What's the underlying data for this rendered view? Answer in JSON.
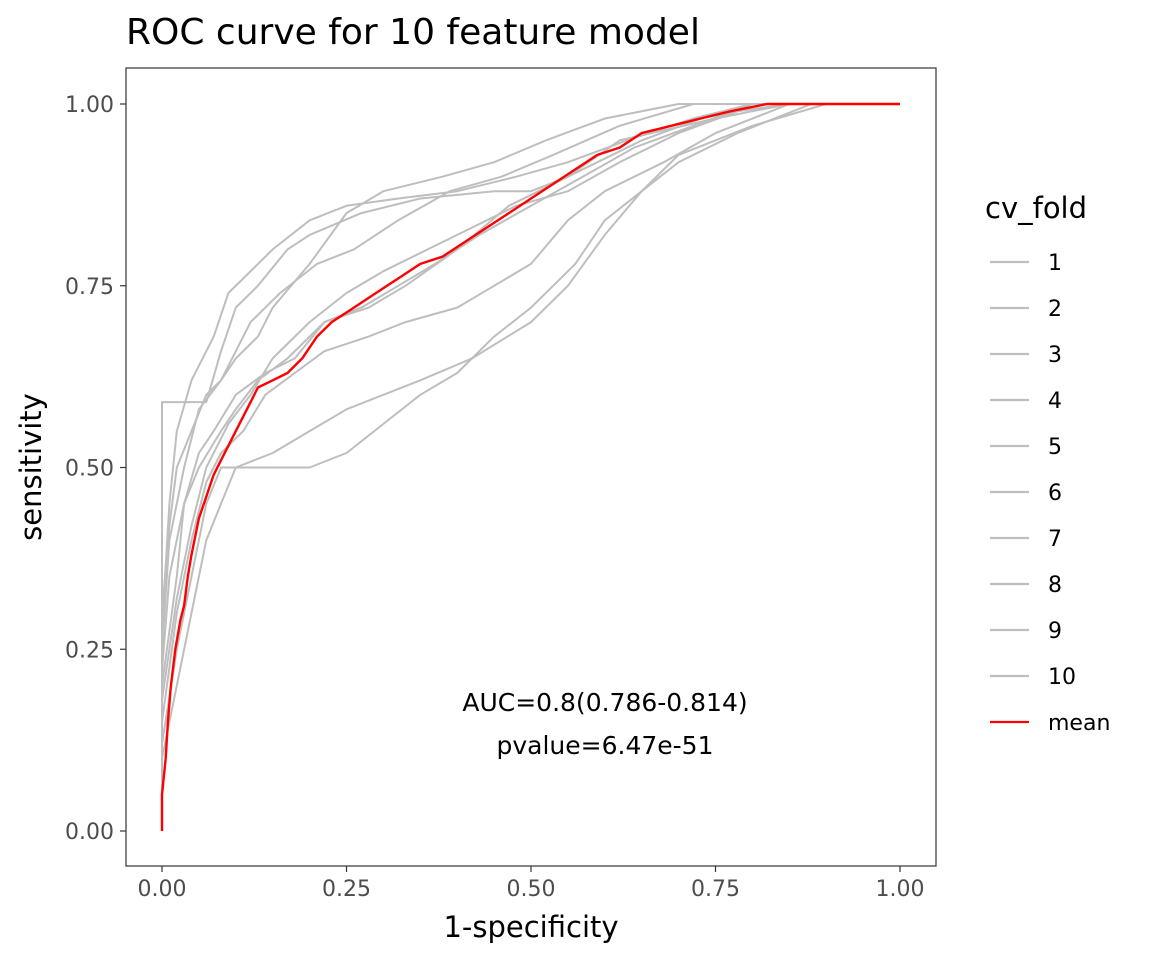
{
  "chart_data": {
    "type": "line",
    "title": "ROC curve for 10 feature model",
    "xlabel": "1-specificity",
    "ylabel": "sensitivity",
    "xlim": [
      -0.05,
      1.05
    ],
    "ylim": [
      -0.05,
      1.05
    ],
    "x_ticks": [
      "0.00",
      "0.25",
      "0.50",
      "0.75",
      "1.00"
    ],
    "y_ticks": [
      "0.00",
      "0.25",
      "0.50",
      "0.75",
      "1.00"
    ],
    "grid": false,
    "legend": {
      "title": "cv_fold",
      "placement": "right",
      "entries": [
        {
          "label": "1",
          "color": "#bebebe"
        },
        {
          "label": "2",
          "color": "#bebebe"
        },
        {
          "label": "3",
          "color": "#bebebe"
        },
        {
          "label": "4",
          "color": "#bebebe"
        },
        {
          "label": "5",
          "color": "#bebebe"
        },
        {
          "label": "6",
          "color": "#bebebe"
        },
        {
          "label": "7",
          "color": "#bebebe"
        },
        {
          "label": "8",
          "color": "#bebebe"
        },
        {
          "label": "9",
          "color": "#bebebe"
        },
        {
          "label": "10",
          "color": "#bebebe"
        },
        {
          "label": "mean",
          "color": "#ff0000"
        }
      ]
    },
    "annotations": [
      "AUC=0.8(0.786-0.814)",
      "pvalue=6.47e-51"
    ],
    "series": [
      {
        "name": "1",
        "color": "#bebebe",
        "points": [
          [
            0,
            0
          ],
          [
            0,
            0.3
          ],
          [
            0.01,
            0.42
          ],
          [
            0.02,
            0.5
          ],
          [
            0.04,
            0.55
          ],
          [
            0.06,
            0.6
          ],
          [
            0.08,
            0.62
          ],
          [
            0.1,
            0.65
          ],
          [
            0.13,
            0.68
          ],
          [
            0.15,
            0.72
          ],
          [
            0.2,
            0.78
          ],
          [
            0.25,
            0.85
          ],
          [
            0.3,
            0.88
          ],
          [
            0.38,
            0.9
          ],
          [
            0.45,
            0.92
          ],
          [
            0.52,
            0.95
          ],
          [
            0.6,
            0.98
          ],
          [
            0.7,
            1.0
          ],
          [
            1.0,
            1.0
          ]
        ]
      },
      {
        "name": "2",
        "color": "#bebebe",
        "points": [
          [
            0,
            0
          ],
          [
            0,
            0.2
          ],
          [
            0.02,
            0.35
          ],
          [
            0.03,
            0.45
          ],
          [
            0.05,
            0.52
          ],
          [
            0.07,
            0.55
          ],
          [
            0.1,
            0.6
          ],
          [
            0.14,
            0.63
          ],
          [
            0.18,
            0.65
          ],
          [
            0.22,
            0.7
          ],
          [
            0.28,
            0.72
          ],
          [
            0.33,
            0.75
          ],
          [
            0.4,
            0.8
          ],
          [
            0.47,
            0.86
          ],
          [
            0.55,
            0.9
          ],
          [
            0.62,
            0.95
          ],
          [
            0.75,
            0.98
          ],
          [
            0.85,
            1.0
          ],
          [
            1.0,
            1.0
          ]
        ]
      },
      {
        "name": "3",
        "color": "#bebebe",
        "points": [
          [
            0,
            0
          ],
          [
            0,
            0.25
          ],
          [
            0.01,
            0.4
          ],
          [
            0.03,
            0.5
          ],
          [
            0.05,
            0.58
          ],
          [
            0.08,
            0.62
          ],
          [
            0.1,
            0.66
          ],
          [
            0.12,
            0.7
          ],
          [
            0.16,
            0.74
          ],
          [
            0.21,
            0.78
          ],
          [
            0.26,
            0.8
          ],
          [
            0.32,
            0.84
          ],
          [
            0.39,
            0.88
          ],
          [
            0.46,
            0.9
          ],
          [
            0.53,
            0.93
          ],
          [
            0.62,
            0.97
          ],
          [
            0.72,
            1.0
          ],
          [
            1.0,
            1.0
          ]
        ]
      },
      {
        "name": "4",
        "color": "#bebebe",
        "points": [
          [
            0,
            0
          ],
          [
            0,
            0.59
          ],
          [
            0.06,
            0.59
          ],
          [
            0.08,
            0.66
          ],
          [
            0.1,
            0.72
          ],
          [
            0.13,
            0.75
          ],
          [
            0.17,
            0.8
          ],
          [
            0.2,
            0.82
          ],
          [
            0.27,
            0.85
          ],
          [
            0.35,
            0.87
          ],
          [
            0.45,
            0.88
          ],
          [
            0.5,
            0.88
          ],
          [
            0.55,
            0.9
          ],
          [
            0.65,
            0.95
          ],
          [
            0.73,
            0.98
          ],
          [
            0.82,
            1.0
          ],
          [
            1.0,
            1.0
          ]
        ]
      },
      {
        "name": "5",
        "color": "#bebebe",
        "points": [
          [
            0,
            0
          ],
          [
            0,
            0.1
          ],
          [
            0.02,
            0.2
          ],
          [
            0.04,
            0.3
          ],
          [
            0.06,
            0.4
          ],
          [
            0.08,
            0.45
          ],
          [
            0.1,
            0.5
          ],
          [
            0.15,
            0.52
          ],
          [
            0.2,
            0.55
          ],
          [
            0.25,
            0.58
          ],
          [
            0.3,
            0.6
          ],
          [
            0.35,
            0.62
          ],
          [
            0.42,
            0.65
          ],
          [
            0.5,
            0.7
          ],
          [
            0.55,
            0.75
          ],
          [
            0.6,
            0.82
          ],
          [
            0.65,
            0.88
          ],
          [
            0.7,
            0.93
          ],
          [
            0.8,
            0.97
          ],
          [
            0.9,
            1.0
          ],
          [
            1.0,
            1.0
          ]
        ]
      },
      {
        "name": "6",
        "color": "#bebebe",
        "points": [
          [
            0,
            0
          ],
          [
            0,
            0.15
          ],
          [
            0.02,
            0.3
          ],
          [
            0.04,
            0.4
          ],
          [
            0.06,
            0.48
          ],
          [
            0.08,
            0.52
          ],
          [
            0.11,
            0.55
          ],
          [
            0.14,
            0.6
          ],
          [
            0.18,
            0.63
          ],
          [
            0.22,
            0.66
          ],
          [
            0.28,
            0.68
          ],
          [
            0.33,
            0.7
          ],
          [
            0.4,
            0.72
          ],
          [
            0.45,
            0.75
          ],
          [
            0.5,
            0.78
          ],
          [
            0.55,
            0.84
          ],
          [
            0.6,
            0.88
          ],
          [
            0.68,
            0.92
          ],
          [
            0.75,
            0.96
          ],
          [
            0.85,
            1.0
          ],
          [
            1.0,
            1.0
          ]
        ]
      },
      {
        "name": "7",
        "color": "#bebebe",
        "points": [
          [
            0,
            0
          ],
          [
            0,
            0.22
          ],
          [
            0.01,
            0.35
          ],
          [
            0.03,
            0.45
          ],
          [
            0.05,
            0.5
          ],
          [
            0.08,
            0.55
          ],
          [
            0.1,
            0.58
          ],
          [
            0.13,
            0.62
          ],
          [
            0.17,
            0.65
          ],
          [
            0.22,
            0.7
          ],
          [
            0.27,
            0.72
          ],
          [
            0.32,
            0.75
          ],
          [
            0.37,
            0.78
          ],
          [
            0.43,
            0.82
          ],
          [
            0.5,
            0.86
          ],
          [
            0.57,
            0.9
          ],
          [
            0.64,
            0.94
          ],
          [
            0.72,
            0.97
          ],
          [
            0.8,
            1.0
          ],
          [
            1.0,
            1.0
          ]
        ]
      },
      {
        "name": "8",
        "color": "#bebebe",
        "points": [
          [
            0,
            0
          ],
          [
            0,
            0.12
          ],
          [
            0.02,
            0.25
          ],
          [
            0.04,
            0.35
          ],
          [
            0.06,
            0.45
          ],
          [
            0.08,
            0.5
          ],
          [
            0.1,
            0.5
          ],
          [
            0.15,
            0.5
          ],
          [
            0.2,
            0.5
          ],
          [
            0.25,
            0.52
          ],
          [
            0.3,
            0.56
          ],
          [
            0.35,
            0.6
          ],
          [
            0.4,
            0.63
          ],
          [
            0.45,
            0.68
          ],
          [
            0.5,
            0.72
          ],
          [
            0.56,
            0.78
          ],
          [
            0.6,
            0.84
          ],
          [
            0.65,
            0.88
          ],
          [
            0.7,
            0.92
          ],
          [
            0.78,
            0.96
          ],
          [
            0.88,
            1.0
          ],
          [
            1.0,
            1.0
          ]
        ]
      },
      {
        "name": "9",
        "color": "#bebebe",
        "points": [
          [
            0,
            0
          ],
          [
            0,
            0.18
          ],
          [
            0.02,
            0.32
          ],
          [
            0.04,
            0.42
          ],
          [
            0.06,
            0.5
          ],
          [
            0.09,
            0.56
          ],
          [
            0.12,
            0.6
          ],
          [
            0.15,
            0.65
          ],
          [
            0.2,
            0.7
          ],
          [
            0.25,
            0.74
          ],
          [
            0.3,
            0.77
          ],
          [
            0.36,
            0.8
          ],
          [
            0.42,
            0.83
          ],
          [
            0.48,
            0.86
          ],
          [
            0.55,
            0.88
          ],
          [
            0.62,
            0.92
          ],
          [
            0.7,
            0.96
          ],
          [
            0.78,
            0.99
          ],
          [
            0.85,
            1.0
          ],
          [
            1.0,
            1.0
          ]
        ]
      },
      {
        "name": "10",
        "color": "#bebebe",
        "points": [
          [
            0,
            0
          ],
          [
            0,
            0.28
          ],
          [
            0.01,
            0.45
          ],
          [
            0.02,
            0.55
          ],
          [
            0.04,
            0.62
          ],
          [
            0.07,
            0.68
          ],
          [
            0.09,
            0.74
          ],
          [
            0.11,
            0.76
          ],
          [
            0.15,
            0.8
          ],
          [
            0.2,
            0.84
          ],
          [
            0.25,
            0.86
          ],
          [
            0.32,
            0.87
          ],
          [
            0.4,
            0.88
          ],
          [
            0.48,
            0.9
          ],
          [
            0.55,
            0.92
          ],
          [
            0.63,
            0.95
          ],
          [
            0.72,
            0.98
          ],
          [
            0.8,
            1.0
          ],
          [
            1.0,
            1.0
          ]
        ]
      },
      {
        "name": "mean",
        "color": "#ff0000",
        "points": [
          [
            0,
            0
          ],
          [
            0,
            0.05
          ],
          [
            0.005,
            0.1
          ],
          [
            0.008,
            0.15
          ],
          [
            0.012,
            0.2
          ],
          [
            0.018,
            0.25
          ],
          [
            0.025,
            0.29
          ],
          [
            0.03,
            0.31
          ],
          [
            0.035,
            0.35
          ],
          [
            0.04,
            0.38
          ],
          [
            0.05,
            0.43
          ],
          [
            0.06,
            0.46
          ],
          [
            0.07,
            0.49
          ],
          [
            0.08,
            0.51
          ],
          [
            0.09,
            0.53
          ],
          [
            0.1,
            0.55
          ],
          [
            0.11,
            0.57
          ],
          [
            0.12,
            0.59
          ],
          [
            0.13,
            0.61
          ],
          [
            0.15,
            0.62
          ],
          [
            0.17,
            0.63
          ],
          [
            0.19,
            0.65
          ],
          [
            0.21,
            0.68
          ],
          [
            0.23,
            0.7
          ],
          [
            0.26,
            0.72
          ],
          [
            0.29,
            0.74
          ],
          [
            0.32,
            0.76
          ],
          [
            0.35,
            0.78
          ],
          [
            0.38,
            0.79
          ],
          [
            0.41,
            0.81
          ],
          [
            0.44,
            0.83
          ],
          [
            0.47,
            0.85
          ],
          [
            0.5,
            0.87
          ],
          [
            0.53,
            0.89
          ],
          [
            0.56,
            0.91
          ],
          [
            0.59,
            0.93
          ],
          [
            0.62,
            0.94
          ],
          [
            0.65,
            0.96
          ],
          [
            0.69,
            0.97
          ],
          [
            0.73,
            0.98
          ],
          [
            0.77,
            0.99
          ],
          [
            0.82,
            1.0
          ],
          [
            1.0,
            1.0
          ]
        ]
      }
    ]
  }
}
